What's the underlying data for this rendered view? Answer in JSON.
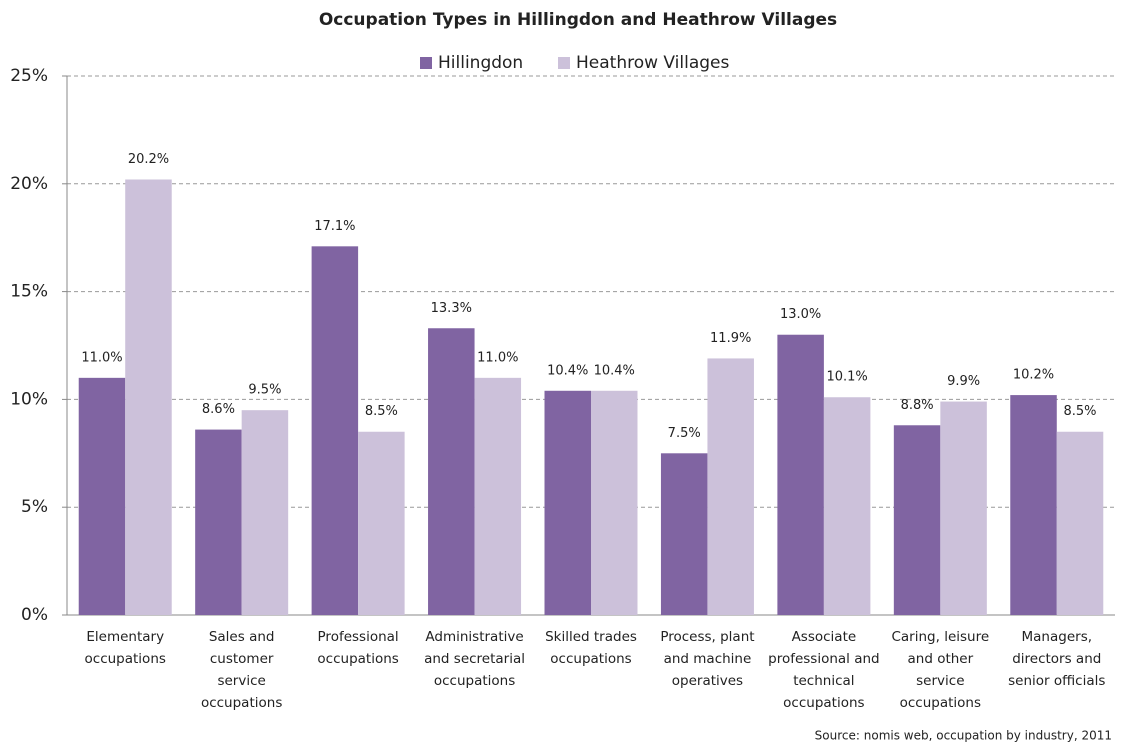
{
  "chart_data": {
    "type": "bar",
    "title": "Occupation Types in Hillingdon and Heathrow Villages",
    "source": "Source: nomis web, occupation by industry, 2011",
    "categories": [
      "Elementary occupations",
      "Sales and customer service occupations",
      "Professional occupations",
      "Administrative and secretarial occupations",
      "Skilled trades occupations",
      "Process, plant and machine operatives",
      "Associate professional and technical occupations",
      "Caring, leisure and other service occupations",
      "Managers, directors and senior officials"
    ],
    "series": [
      {
        "name": "Hillingdon",
        "color": "#8064a2",
        "values": [
          11.0,
          8.6,
          17.1,
          13.3,
          10.4,
          7.5,
          13.0,
          8.8,
          10.2
        ],
        "value_labels": [
          "11.0%",
          "8.6%",
          "17.1%",
          "13.3%",
          "10.4%",
          "7.5%",
          "13.0%",
          "8.8%",
          "10.2%"
        ]
      },
      {
        "name": "Heathrow Villages",
        "color": "#ccc1da",
        "values": [
          20.2,
          9.5,
          8.5,
          11.0,
          10.4,
          11.9,
          10.1,
          9.9,
          8.5
        ],
        "value_labels": [
          "20.2%",
          "9.5%",
          "8.5%",
          "11.0%",
          "10.4%",
          "11.9%",
          "10.1%",
          "9.9%",
          "8.5%"
        ]
      }
    ],
    "ylim": [
      0,
      25
    ],
    "yticks": [
      {
        "value": 0,
        "label": "0%"
      },
      {
        "value": 5,
        "label": "5%"
      },
      {
        "value": 10,
        "label": "10%"
      },
      {
        "value": 15,
        "label": "15%"
      },
      {
        "value": 20,
        "label": "20%"
      },
      {
        "value": 25,
        "label": "25%"
      }
    ],
    "grid": true,
    "legend": "top"
  }
}
